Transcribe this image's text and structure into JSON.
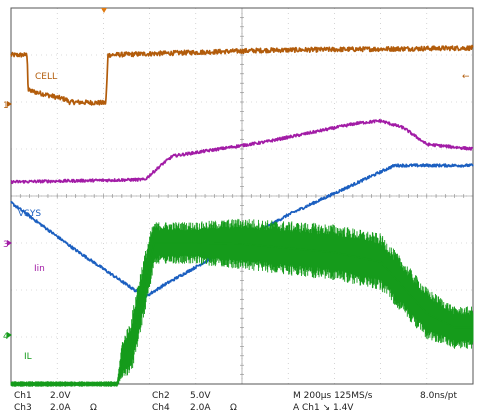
{
  "chart_data": {
    "type": "line",
    "title": "",
    "xlabel": "",
    "ylabel": "",
    "grid": true,
    "x_divisions": 10,
    "y_divisions": 8,
    "trigger_marker_color": "#e07a10",
    "series": [
      {
        "name": "CELL",
        "channel": "Ch1",
        "color": "#b25c0b",
        "scale": "2.0V",
        "x": [
          0,
          0.35,
          0.36,
          0.37,
          1.2,
          1.25,
          2.05,
          2.07,
          2.1,
          5.5,
          10
        ],
        "y": [
          7.0,
          7.0,
          6.7,
          6.25,
          6.05,
          6.0,
          5.98,
          6.3,
          7.0,
          7.1,
          7.15
        ]
      },
      {
        "name": "",
        "channel": "Ch2",
        "color": "#1b5fc0",
        "scale": "5.0V",
        "x": [
          0,
          1.4,
          2.9,
          3.3,
          6.0,
          8.3,
          10
        ],
        "y": [
          3.86,
          2.85,
          1.85,
          2.1,
          3.6,
          4.65,
          4.65
        ]
      },
      {
        "name": "Iin",
        "channel": "Ch3",
        "color": "#a21ca6",
        "scale": "2.0A",
        "x": [
          0,
          2.9,
          3.3,
          3.5,
          5.5,
          7.5,
          8.0,
          8.5,
          9.0,
          10
        ],
        "y": [
          4.3,
          4.35,
          4.7,
          4.85,
          5.15,
          5.55,
          5.6,
          5.45,
          5.1,
          5.0
        ]
      },
      {
        "name": "IL",
        "channel": "Ch4",
        "color": "#159b1b",
        "scale": "2.0A",
        "x": [
          0,
          2.3,
          2.4,
          2.6,
          2.75,
          3.0,
          3.1,
          4.0,
          5.0,
          7.0,
          8.0,
          9.0,
          9.6,
          10
        ],
        "y": [
          0.0,
          0.0,
          0.5,
          0.8,
          1.5,
          2.6,
          3.0,
          3.0,
          2.98,
          2.8,
          2.6,
          1.5,
          1.2,
          1.2
        ],
        "spread": [
          0.06,
          0.06,
          0.4,
          0.6,
          0.7,
          0.6,
          0.45,
          0.45,
          0.55,
          0.6,
          0.6,
          0.55,
          0.45,
          0.45
        ]
      }
    ]
  },
  "readout": {
    "ch1_label": "Ch1",
    "ch1_scale": "2.0V",
    "ch2_label": "Ch2",
    "ch2_scale": "5.0V",
    "ch3_label": "Ch3",
    "ch3_scale": "2.0A",
    "ch3_unit": "Ω",
    "ch4_label": "Ch4",
    "ch4_scale": "2.0A",
    "ch4_unit": "Ω",
    "timebase": "M 200µs 125MS/s",
    "resolution": "8.0ns/pt",
    "trigger": "A  Ch1  ↘  1.4V"
  },
  "labels": {
    "cell": "CELL",
    "vsys": "VSYS",
    "iin": "Iin",
    "il": "IL"
  },
  "markers": {
    "ch1_ground": "1",
    "ch3_ground": "3",
    "ch4_ground": "4",
    "ch1_trigger_level": "←"
  }
}
